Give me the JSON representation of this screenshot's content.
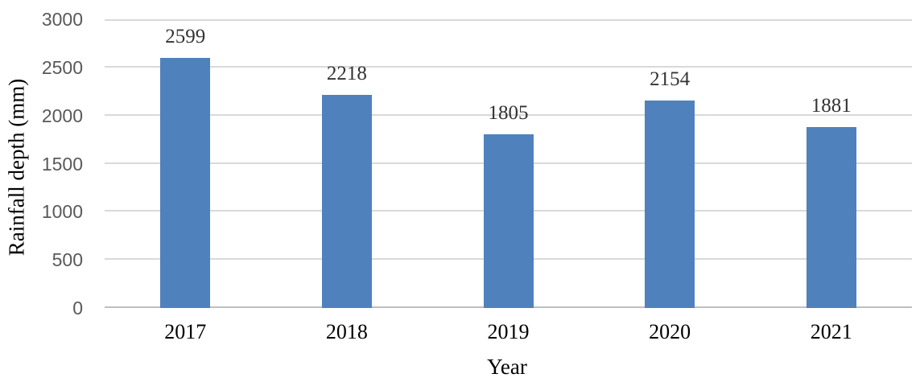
{
  "chart_data": {
    "type": "bar",
    "title": "",
    "categories": [
      "2017",
      "2018",
      "2019",
      "2020",
      "2021"
    ],
    "values": [
      2599,
      2218,
      1805,
      2154,
      1881
    ],
    "data_labels": [
      "2599",
      "2218",
      "1805",
      "2154",
      "1881"
    ],
    "xlabel": "Year",
    "ylabel": "Rainfall depth (mm)",
    "ylim": [
      0,
      3000
    ],
    "ytick_interval": 500,
    "yticks": [
      0,
      500,
      1000,
      1500,
      2000,
      2500,
      3000
    ],
    "grid": "horizontal-only",
    "legend_position": "none",
    "data_labels_shown": true,
    "colors": {
      "bar_fill": "#4F81BD",
      "gridline": "#D9D9D9",
      "axis_line": "#BFBFBF",
      "tick_label_text": "#595959",
      "data_label_text": "#333333",
      "axis_title_text": "#000000",
      "background": "#FFFFFF"
    }
  }
}
